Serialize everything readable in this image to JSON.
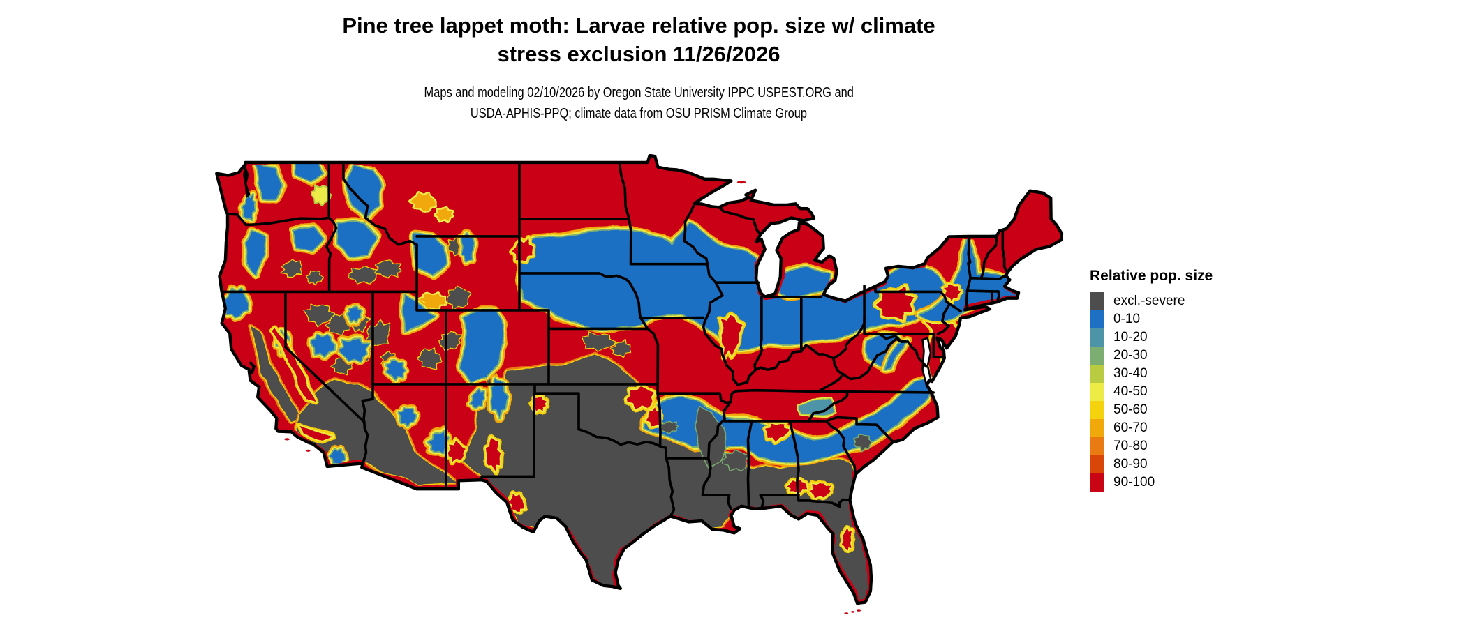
{
  "page": {
    "background": "#ffffff"
  },
  "title": {
    "line1": "Pine tree lappet moth: Larvae relative pop. size w/ climate",
    "line2": "stress exclusion 11/26/2026"
  },
  "subtitle": {
    "line1": "Maps and modeling 02/10/2026 by Oregon State University IPPC USPEST.ORG and",
    "line2": "USDA-APHIS-PPQ; climate data from OSU PRISM Climate Group"
  },
  "legend": {
    "title": "Relative pop. size",
    "items": [
      {
        "label": "excl.-severe",
        "color": "#4D4D4D"
      },
      {
        "label": "0-10",
        "color": "#1E70C4"
      },
      {
        "label": "10-20",
        "color": "#4E94A8"
      },
      {
        "label": "20-30",
        "color": "#7CAE71"
      },
      {
        "label": "30-40",
        "color": "#B9CC41"
      },
      {
        "label": "40-50",
        "color": "#EDEB46"
      },
      {
        "label": "50-60",
        "color": "#F5D20E"
      },
      {
        "label": "60-70",
        "color": "#F0A80A"
      },
      {
        "label": "70-80",
        "color": "#E97B12"
      },
      {
        "label": "80-90",
        "color": "#DA4508"
      },
      {
        "label": "90-100",
        "color": "#C90414"
      }
    ]
  },
  "map": {
    "region": "Continental United States",
    "border_color": "#000000",
    "water_color": "#ffffff"
  }
}
